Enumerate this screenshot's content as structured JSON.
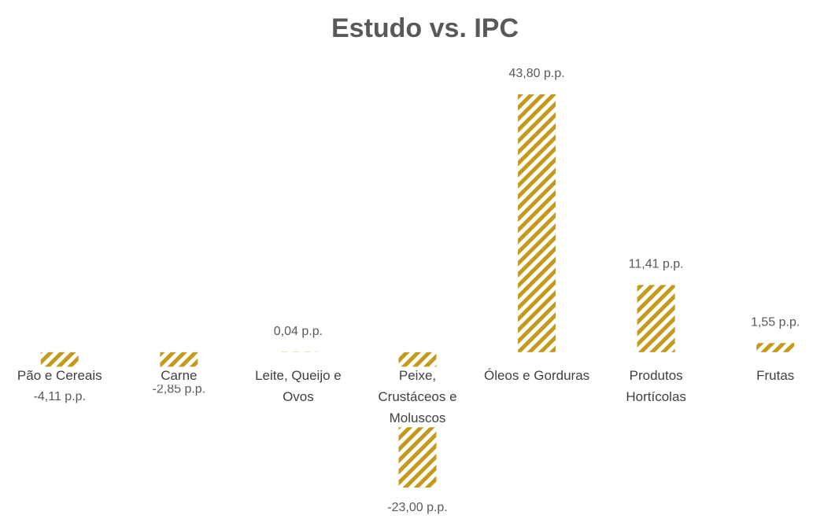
{
  "chart_data": {
    "type": "bar",
    "title": "Estudo vs. IPC",
    "categories": [
      "Pão e Cereais",
      "Carne",
      "Leite, Queijo e Ovos",
      "Peixe, Crustáceos e Moluscos",
      "Óleos e Gorduras",
      "Produtos Hortícolas",
      "Frutas"
    ],
    "values": [
      -4.11,
      -2.85,
      0.04,
      -23.0,
      43.8,
      11.41,
      1.55
    ],
    "value_labels": [
      "-4,11 p.p.",
      "-2,85 p.p.",
      "0,04 p.p.",
      "-23,00 p.p.",
      "43,80 p.p.",
      "11,41 p.p.",
      "1,55 p.p."
    ],
    "color": "#c49a1c",
    "ylim": [
      -25,
      45
    ]
  }
}
